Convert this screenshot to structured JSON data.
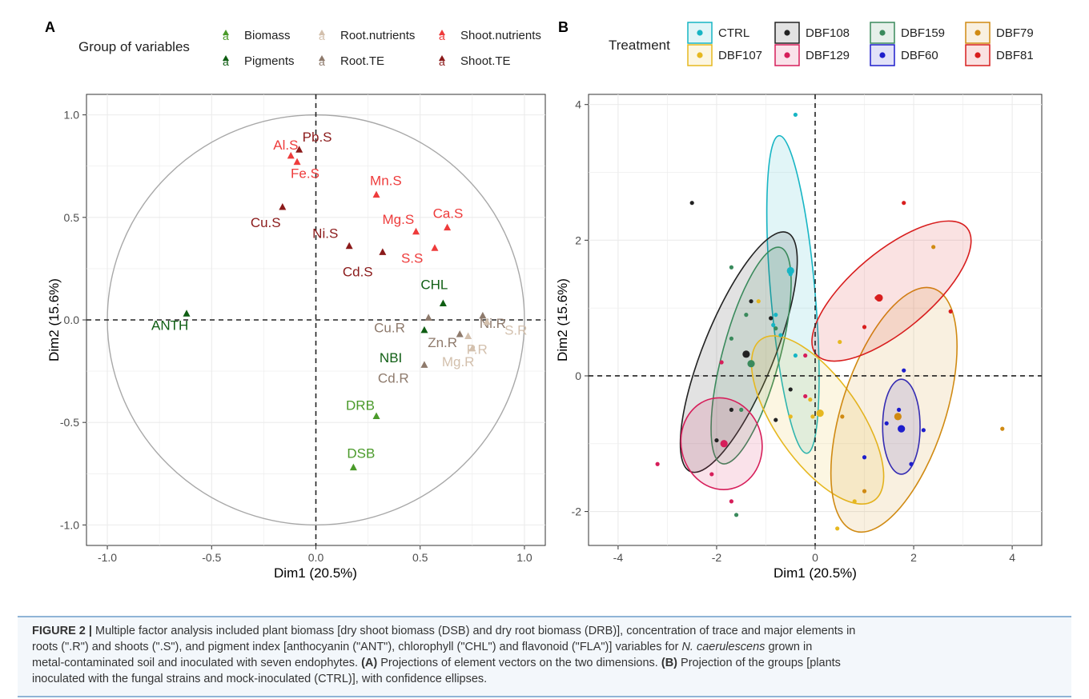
{
  "panel_a": {
    "tag": "A",
    "legend_title": "Group of variables",
    "legend_items": [
      {
        "label": "Biomass",
        "color": "#4a9a2a"
      },
      {
        "label": "Pigments",
        "color": "#0f5e13"
      },
      {
        "label": "Root.nutrients",
        "color": "#d3c0ad"
      },
      {
        "label": "Root.TE",
        "color": "#8e7a6c"
      },
      {
        "label": "Shoot.nutrients",
        "color": "#ee3b3b"
      },
      {
        "label": "Shoot.TE",
        "color": "#8b1a1a"
      }
    ],
    "xlabel": "Dim1 (20.5%)",
    "ylabel": "Dim2 (15.6%)",
    "x_ticks": [
      "-1.0",
      "-0.5",
      "0.0",
      "0.5",
      "1.0"
    ],
    "y_ticks": [
      "-1.0",
      "-0.5",
      "0.0",
      "0.5",
      "1.0"
    ]
  },
  "panel_b": {
    "tag": "B",
    "legend_title": "Treatment",
    "legend_items": [
      {
        "label": "CTRL",
        "color": "#17b5c4"
      },
      {
        "label": "DBF108",
        "color": "#222222"
      },
      {
        "label": "DBF159",
        "color": "#3a8a5c"
      },
      {
        "label": "DBF79",
        "color": "#d08a12"
      },
      {
        "label": "DBF107",
        "color": "#e6b820"
      },
      {
        "label": "DBF129",
        "color": "#d61e5a"
      },
      {
        "label": "DBF60",
        "color": "#1e1ecc"
      },
      {
        "label": "DBF81",
        "color": "#d81e1e"
      }
    ],
    "xlabel": "Dim1 (20.5%)",
    "ylabel": "Dim2 (15.6%)",
    "x_ticks": [
      "-4",
      "-2",
      "0",
      "2",
      "4"
    ],
    "y_ticks": [
      "-2",
      "0",
      "2",
      "4"
    ]
  },
  "caption": {
    "label": "FIGURE 2 |",
    "line1": " Multiple factor analysis included plant biomass [dry shoot biomass (DSB) and dry root biomass (DRB)], concentration of trace and major elements in",
    "line2": "roots (\".R\") and shoots (\".S\"), and pigment index [anthocyanin (\"ANT\"), chlorophyll (\"CHL\") and flavonoid (\"FLA\")] variables for ",
    "species": "N. caerulescens",
    "line2b": " grown in",
    "line3": "metal-contaminated soil and inoculated with seven endophytes. ",
    "a_label": "(A)",
    "a_text": " Projections of element vectors on the two dimensions. ",
    "b_label": "(B)",
    "b_text": " Projection of the groups [plants",
    "line4": "inoculated with the fungal strains and mock-inoculated (CTRL)], with confidence ellipses."
  },
  "chart_data": [
    {
      "type": "scatter",
      "title": "",
      "xlabel": "Dim1 (20.5%)",
      "ylabel": "Dim2 (15.6%)",
      "xlim": [
        -1.1,
        1.1
      ],
      "ylim": [
        -1.1,
        1.1
      ],
      "grid": true,
      "legend_position": "top",
      "reference_lines": {
        "x": 0,
        "y": 0,
        "style": "dashed"
      },
      "unit_circle": true,
      "points": [
        {
          "label": "Al.S",
          "group": "Shoot.nutrients",
          "x": -0.12,
          "y": 0.8
        },
        {
          "label": "Pb.S",
          "group": "Shoot.TE",
          "x": -0.08,
          "y": 0.83
        },
        {
          "label": "Fe.S",
          "group": "Shoot.nutrients",
          "x": -0.09,
          "y": 0.77
        },
        {
          "label": "Mn.S",
          "group": "Shoot.nutrients",
          "x": 0.29,
          "y": 0.61
        },
        {
          "label": "Cu.S",
          "group": "Shoot.TE",
          "x": -0.16,
          "y": 0.55
        },
        {
          "label": "Ca.S",
          "group": "Shoot.nutrients",
          "x": 0.63,
          "y": 0.45
        },
        {
          "label": "Mg.S",
          "group": "Shoot.nutrients",
          "x": 0.48,
          "y": 0.43
        },
        {
          "label": "Ni.S",
          "group": "Shoot.TE",
          "x": 0.16,
          "y": 0.36
        },
        {
          "label": "S.S",
          "group": "Shoot.nutrients",
          "x": 0.57,
          "y": 0.35
        },
        {
          "label": "Cd.S",
          "group": "Shoot.TE",
          "x": 0.32,
          "y": 0.33
        },
        {
          "label": "CHL",
          "group": "Pigments",
          "x": 0.61,
          "y": 0.08
        },
        {
          "label": "ANTH",
          "group": "Pigments",
          "x": -0.62,
          "y": 0.03
        },
        {
          "label": "Cu.R",
          "group": "Root.TE",
          "x": 0.54,
          "y": 0.01
        },
        {
          "label": "Ni.R",
          "group": "Root.TE",
          "x": 0.8,
          "y": 0.02
        },
        {
          "label": "S.R",
          "group": "Root.nutrients",
          "x": 0.82,
          "y": -0.01
        },
        {
          "label": "Zn.R",
          "group": "Root.TE",
          "x": 0.69,
          "y": -0.07
        },
        {
          "label": "NBI",
          "group": "Pigments",
          "x": 0.52,
          "y": -0.05
        },
        {
          "label": "P.R",
          "group": "Root.nutrients",
          "x": 0.73,
          "y": -0.08
        },
        {
          "label": "Mg.R",
          "group": "Root.nutrients",
          "x": 0.75,
          "y": -0.14
        },
        {
          "label": "Cd.R",
          "group": "Root.TE",
          "x": 0.52,
          "y": -0.22
        },
        {
          "label": "DRB",
          "group": "Biomass",
          "x": 0.29,
          "y": -0.47
        },
        {
          "label": "DSB",
          "group": "Biomass",
          "x": 0.18,
          "y": -0.72
        }
      ]
    },
    {
      "type": "scatter",
      "title": "",
      "xlabel": "Dim1 (20.5%)",
      "ylabel": "Dim2 (15.6%)",
      "xlim": [
        -4.6,
        4.6
      ],
      "ylim": [
        -2.5,
        4.15
      ],
      "grid": true,
      "legend_position": "top",
      "reference_lines": {
        "x": 0,
        "y": 0,
        "style": "dashed"
      },
      "series": [
        {
          "name": "CTRL",
          "centroid": [
            -0.5,
            1.55
          ],
          "ellipse": {
            "cx": -0.45,
            "cy": 1.2,
            "rx": 0.45,
            "ry": 2.35,
            "angle": -5
          },
          "points": [
            [
              -0.4,
              3.85
            ],
            [
              -0.5,
              1.5
            ],
            [
              -0.8,
              0.9
            ],
            [
              -0.4,
              0.3
            ],
            [
              -0.85,
              0.75
            ],
            [
              -0.7,
              0.6
            ]
          ]
        },
        {
          "name": "DBF108",
          "centroid": [
            -1.4,
            0.32
          ],
          "ellipse": {
            "cx": -1.55,
            "cy": 0.35,
            "rx": 0.72,
            "ry": 1.9,
            "angle": 22
          },
          "points": [
            [
              -2.5,
              2.55
            ],
            [
              -1.3,
              1.1
            ],
            [
              -0.9,
              0.85
            ],
            [
              -2.0,
              -0.95
            ],
            [
              -1.7,
              -0.5
            ],
            [
              -0.8,
              -0.65
            ],
            [
              -0.5,
              -0.2
            ]
          ]
        },
        {
          "name": "DBF159",
          "centroid": [
            -1.3,
            0.18
          ],
          "ellipse": {
            "cx": -1.3,
            "cy": 0.3,
            "rx": 0.58,
            "ry": 1.65,
            "angle": 15
          },
          "points": [
            [
              -1.7,
              1.6
            ],
            [
              -1.4,
              0.9
            ],
            [
              -0.8,
              0.7
            ],
            [
              -1.7,
              0.55
            ],
            [
              -1.6,
              -2.05
            ],
            [
              -1.5,
              -0.5
            ]
          ]
        },
        {
          "name": "DBF107",
          "centroid": [
            0.1,
            -0.55
          ],
          "ellipse": {
            "cx": 0.05,
            "cy": -0.65,
            "rx": 0.85,
            "ry": 1.45,
            "angle": -35
          },
          "points": [
            [
              -0.1,
              -0.35
            ],
            [
              0.45,
              -2.25
            ],
            [
              -0.5,
              -0.6
            ],
            [
              -1.15,
              1.1
            ],
            [
              0.8,
              -1.85
            ],
            [
              0.5,
              0.5
            ],
            [
              -0.05,
              -0.6
            ]
          ]
        },
        {
          "name": "DBF129",
          "centroid": [
            -1.85,
            -1.0
          ],
          "ellipse": {
            "cx": -1.9,
            "cy": -1.0,
            "rx": 0.82,
            "ry": 0.68,
            "angle": -12
          },
          "points": [
            [
              -3.2,
              -1.3
            ],
            [
              -2.1,
              -1.45
            ],
            [
              -1.7,
              -1.85
            ],
            [
              -1.9,
              0.2
            ],
            [
              -0.2,
              0.3
            ],
            [
              -0.2,
              -0.3
            ]
          ]
        },
        {
          "name": "DBF60",
          "centroid": [
            1.75,
            -0.78
          ],
          "ellipse": {
            "cx": 1.75,
            "cy": -0.75,
            "rx": 0.38,
            "ry": 0.7,
            "angle": 0
          },
          "points": [
            [
              1.8,
              0.08
            ],
            [
              2.2,
              -0.8
            ],
            [
              1.95,
              -1.3
            ],
            [
              1.45,
              -0.7
            ],
            [
              1.7,
              -0.5
            ],
            [
              1.0,
              -1.2
            ]
          ]
        },
        {
          "name": "DBF79",
          "centroid": [
            1.68,
            -0.6
          ],
          "ellipse": {
            "cx": 1.6,
            "cy": -0.5,
            "rx": 1.05,
            "ry": 1.88,
            "angle": 18
          },
          "points": [
            [
              3.8,
              -0.78
            ],
            [
              2.4,
              1.9
            ],
            [
              0.55,
              -0.6
            ],
            [
              1.0,
              -1.7
            ],
            [
              1.7,
              -0.6
            ]
          ]
        },
        {
          "name": "DBF81",
          "centroid": [
            1.3,
            1.15
          ],
          "ellipse": {
            "cx": 1.55,
            "cy": 1.25,
            "rx": 0.8,
            "ry": 1.45,
            "angle": 50
          },
          "points": [
            [
              1.8,
              2.55
            ],
            [
              2.75,
              0.95
            ],
            [
              1.0,
              0.72
            ],
            [
              1.25,
              1.15
            ],
            [
              1.3,
              1.15
            ]
          ]
        }
      ]
    }
  ]
}
